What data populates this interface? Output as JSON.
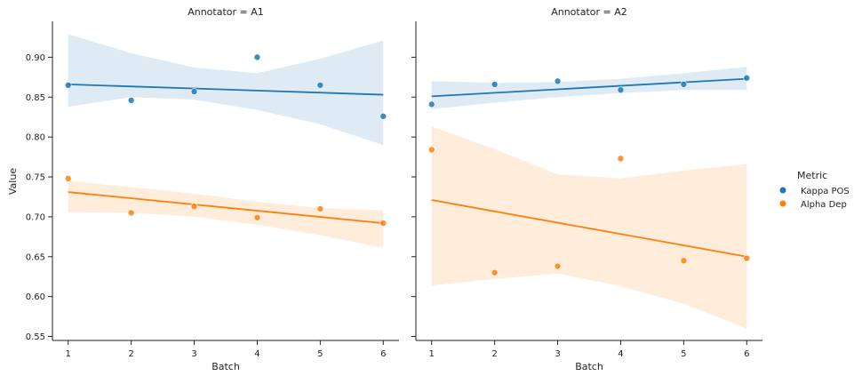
{
  "chart_data": {
    "type": "scatter",
    "facet_variable": "Annotator",
    "panels": [
      {
        "title": "Annotator = A1",
        "series": [
          {
            "name": "Kappa POS",
            "color": "#1f77b4",
            "x": [
              1,
              2,
              3,
              4,
              5,
              6
            ],
            "y": [
              0.865,
              0.846,
              0.857,
              0.9,
              0.865,
              0.826
            ],
            "fit": {
              "y_start": 0.866,
              "y_end": 0.853
            },
            "ci": {
              "upper": [
                0.929,
                0.905,
                0.887,
                0.88,
                0.898,
                0.921
              ],
              "lower": [
                0.838,
                0.85,
                0.847,
                0.834,
                0.816,
                0.79
              ]
            }
          },
          {
            "name": "Alpha Dep",
            "color": "#ff7f0e",
            "x": [
              1,
              2,
              3,
              4,
              5,
              6
            ],
            "y": [
              0.748,
              0.705,
              0.713,
              0.699,
              0.71,
              0.692
            ],
            "fit": {
              "y_start": 0.731,
              "y_end": 0.692
            },
            "ci": {
              "upper": [
                0.745,
                0.737,
                0.729,
                0.719,
                0.711,
                0.708
              ],
              "lower": [
                0.706,
                0.705,
                0.7,
                0.69,
                0.677,
                0.661
              ]
            }
          }
        ]
      },
      {
        "title": "Annotator = A2",
        "series": [
          {
            "name": "Kappa POS",
            "color": "#1f77b4",
            "x": [
              1,
              2,
              3,
              4,
              5,
              6
            ],
            "y": [
              0.841,
              0.866,
              0.87,
              0.859,
              0.866,
              0.874
            ],
            "fit": {
              "y_start": 0.851,
              "y_end": 0.873
            },
            "ci": {
              "upper": [
                0.87,
                0.868,
                0.869,
                0.873,
                0.88,
                0.888
              ],
              "lower": [
                0.835,
                0.843,
                0.85,
                0.855,
                0.859,
                0.859
              ]
            }
          },
          {
            "name": "Alpha Dep",
            "color": "#ff7f0e",
            "x": [
              1,
              2,
              3,
              4,
              5,
              6
            ],
            "y": [
              0.784,
              0.63,
              0.638,
              0.773,
              0.645,
              0.648
            ],
            "fit": {
              "y_start": 0.721,
              "y_end": 0.65
            },
            "ci": {
              "upper": [
                0.813,
                0.785,
                0.753,
                0.748,
                0.758,
                0.766
              ],
              "lower": [
                0.614,
                0.622,
                0.629,
                0.613,
                0.591,
                0.56
              ]
            }
          }
        ]
      }
    ],
    "xlabel": "Batch",
    "ylabel": "Value",
    "xlim": [
      0.75,
      6.25
    ],
    "ylim": [
      0.545,
      0.945
    ],
    "xticks": [
      "1",
      "2",
      "3",
      "4",
      "5",
      "6"
    ],
    "yticks": [
      "0.55",
      "0.60",
      "0.65",
      "0.70",
      "0.75",
      "0.80",
      "0.85",
      "0.90"
    ],
    "legend": {
      "title": "Metric",
      "placement": "right",
      "entries": [
        "Kappa POS",
        "Alpha Dep"
      ]
    },
    "grid": false
  }
}
